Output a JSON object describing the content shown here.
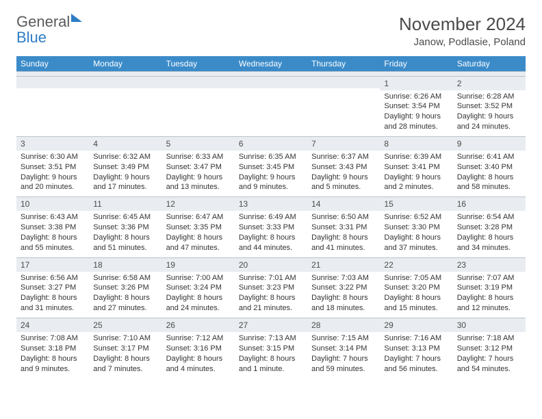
{
  "brand": {
    "general": "General",
    "blue": "Blue"
  },
  "title": "November 2024",
  "location": "Janow, Podlasie, Poland",
  "colors": {
    "header_bg": "#3b8bc9",
    "header_text": "#ffffff",
    "daynum_bg": "#e9edf1",
    "border": "#b9c2cb",
    "body_text": "#333333",
    "title_text": "#4a4a4a",
    "brand_gray": "#5a5a5a",
    "brand_blue": "#2d7cc4"
  },
  "typography": {
    "title_fontsize": 26,
    "location_fontsize": 15,
    "dow_fontsize": 12,
    "daynum_fontsize": 12,
    "cell_fontsize": 11
  },
  "dow": [
    "Sunday",
    "Monday",
    "Tuesday",
    "Wednesday",
    "Thursday",
    "Friday",
    "Saturday"
  ],
  "weeks": [
    [
      {
        "n": "",
        "sr": "",
        "ss": "",
        "dl": ""
      },
      {
        "n": "",
        "sr": "",
        "ss": "",
        "dl": ""
      },
      {
        "n": "",
        "sr": "",
        "ss": "",
        "dl": ""
      },
      {
        "n": "",
        "sr": "",
        "ss": "",
        "dl": ""
      },
      {
        "n": "",
        "sr": "",
        "ss": "",
        "dl": ""
      },
      {
        "n": "1",
        "sr": "Sunrise: 6:26 AM",
        "ss": "Sunset: 3:54 PM",
        "dl": "Daylight: 9 hours and 28 minutes."
      },
      {
        "n": "2",
        "sr": "Sunrise: 6:28 AM",
        "ss": "Sunset: 3:52 PM",
        "dl": "Daylight: 9 hours and 24 minutes."
      }
    ],
    [
      {
        "n": "3",
        "sr": "Sunrise: 6:30 AM",
        "ss": "Sunset: 3:51 PM",
        "dl": "Daylight: 9 hours and 20 minutes."
      },
      {
        "n": "4",
        "sr": "Sunrise: 6:32 AM",
        "ss": "Sunset: 3:49 PM",
        "dl": "Daylight: 9 hours and 17 minutes."
      },
      {
        "n": "5",
        "sr": "Sunrise: 6:33 AM",
        "ss": "Sunset: 3:47 PM",
        "dl": "Daylight: 9 hours and 13 minutes."
      },
      {
        "n": "6",
        "sr": "Sunrise: 6:35 AM",
        "ss": "Sunset: 3:45 PM",
        "dl": "Daylight: 9 hours and 9 minutes."
      },
      {
        "n": "7",
        "sr": "Sunrise: 6:37 AM",
        "ss": "Sunset: 3:43 PM",
        "dl": "Daylight: 9 hours and 5 minutes."
      },
      {
        "n": "8",
        "sr": "Sunrise: 6:39 AM",
        "ss": "Sunset: 3:41 PM",
        "dl": "Daylight: 9 hours and 2 minutes."
      },
      {
        "n": "9",
        "sr": "Sunrise: 6:41 AM",
        "ss": "Sunset: 3:40 PM",
        "dl": "Daylight: 8 hours and 58 minutes."
      }
    ],
    [
      {
        "n": "10",
        "sr": "Sunrise: 6:43 AM",
        "ss": "Sunset: 3:38 PM",
        "dl": "Daylight: 8 hours and 55 minutes."
      },
      {
        "n": "11",
        "sr": "Sunrise: 6:45 AM",
        "ss": "Sunset: 3:36 PM",
        "dl": "Daylight: 8 hours and 51 minutes."
      },
      {
        "n": "12",
        "sr": "Sunrise: 6:47 AM",
        "ss": "Sunset: 3:35 PM",
        "dl": "Daylight: 8 hours and 47 minutes."
      },
      {
        "n": "13",
        "sr": "Sunrise: 6:49 AM",
        "ss": "Sunset: 3:33 PM",
        "dl": "Daylight: 8 hours and 44 minutes."
      },
      {
        "n": "14",
        "sr": "Sunrise: 6:50 AM",
        "ss": "Sunset: 3:31 PM",
        "dl": "Daylight: 8 hours and 41 minutes."
      },
      {
        "n": "15",
        "sr": "Sunrise: 6:52 AM",
        "ss": "Sunset: 3:30 PM",
        "dl": "Daylight: 8 hours and 37 minutes."
      },
      {
        "n": "16",
        "sr": "Sunrise: 6:54 AM",
        "ss": "Sunset: 3:28 PM",
        "dl": "Daylight: 8 hours and 34 minutes."
      }
    ],
    [
      {
        "n": "17",
        "sr": "Sunrise: 6:56 AM",
        "ss": "Sunset: 3:27 PM",
        "dl": "Daylight: 8 hours and 31 minutes."
      },
      {
        "n": "18",
        "sr": "Sunrise: 6:58 AM",
        "ss": "Sunset: 3:26 PM",
        "dl": "Daylight: 8 hours and 27 minutes."
      },
      {
        "n": "19",
        "sr": "Sunrise: 7:00 AM",
        "ss": "Sunset: 3:24 PM",
        "dl": "Daylight: 8 hours and 24 minutes."
      },
      {
        "n": "20",
        "sr": "Sunrise: 7:01 AM",
        "ss": "Sunset: 3:23 PM",
        "dl": "Daylight: 8 hours and 21 minutes."
      },
      {
        "n": "21",
        "sr": "Sunrise: 7:03 AM",
        "ss": "Sunset: 3:22 PM",
        "dl": "Daylight: 8 hours and 18 minutes."
      },
      {
        "n": "22",
        "sr": "Sunrise: 7:05 AM",
        "ss": "Sunset: 3:20 PM",
        "dl": "Daylight: 8 hours and 15 minutes."
      },
      {
        "n": "23",
        "sr": "Sunrise: 7:07 AM",
        "ss": "Sunset: 3:19 PM",
        "dl": "Daylight: 8 hours and 12 minutes."
      }
    ],
    [
      {
        "n": "24",
        "sr": "Sunrise: 7:08 AM",
        "ss": "Sunset: 3:18 PM",
        "dl": "Daylight: 8 hours and 9 minutes."
      },
      {
        "n": "25",
        "sr": "Sunrise: 7:10 AM",
        "ss": "Sunset: 3:17 PM",
        "dl": "Daylight: 8 hours and 7 minutes."
      },
      {
        "n": "26",
        "sr": "Sunrise: 7:12 AM",
        "ss": "Sunset: 3:16 PM",
        "dl": "Daylight: 8 hours and 4 minutes."
      },
      {
        "n": "27",
        "sr": "Sunrise: 7:13 AM",
        "ss": "Sunset: 3:15 PM",
        "dl": "Daylight: 8 hours and 1 minute."
      },
      {
        "n": "28",
        "sr": "Sunrise: 7:15 AM",
        "ss": "Sunset: 3:14 PM",
        "dl": "Daylight: 7 hours and 59 minutes."
      },
      {
        "n": "29",
        "sr": "Sunrise: 7:16 AM",
        "ss": "Sunset: 3:13 PM",
        "dl": "Daylight: 7 hours and 56 minutes."
      },
      {
        "n": "30",
        "sr": "Sunrise: 7:18 AM",
        "ss": "Sunset: 3:12 PM",
        "dl": "Daylight: 7 hours and 54 minutes."
      }
    ]
  ]
}
